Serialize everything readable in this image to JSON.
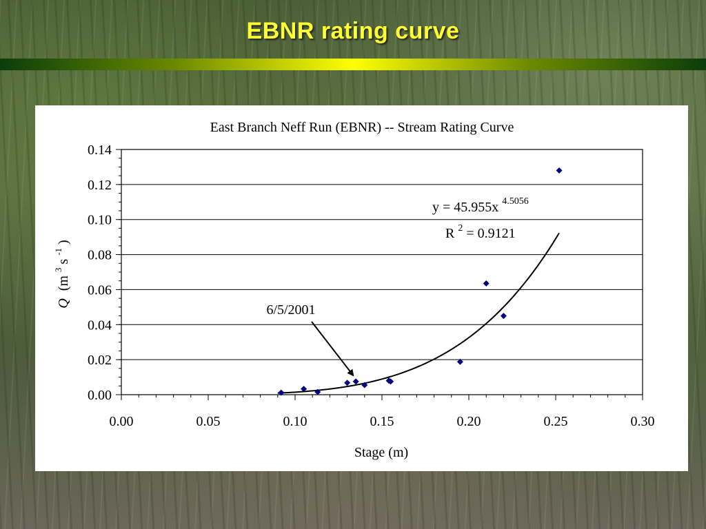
{
  "slide": {
    "title": "EBNR rating curve"
  },
  "chart_data": {
    "type": "scatter",
    "title": "East Branch Neff Run (EBNR) -- Stream Rating Curve",
    "xlabel": "Stage (m)",
    "ylabel": {
      "symbol": "Q",
      "unit_open": "(m",
      "unit_exp1": "3",
      "unit_s": " s",
      "unit_exp2": "-1",
      "unit_close": ")"
    },
    "xlim": [
      0,
      0.3
    ],
    "ylim": [
      0,
      0.14
    ],
    "x_ticks": [
      "0.00",
      "0.05",
      "0.10",
      "0.15",
      "0.20",
      "0.25",
      "0.30"
    ],
    "y_ticks": [
      "0.00",
      "0.02",
      "0.04",
      "0.06",
      "0.08",
      "0.10",
      "0.12",
      "0.14"
    ],
    "grid": "horizontal",
    "series": [
      {
        "marker": "diamond",
        "color": "#000080",
        "points": [
          {
            "x": 0.092,
            "y": 0.0012
          },
          {
            "x": 0.105,
            "y": 0.0033
          },
          {
            "x": 0.113,
            "y": 0.0015
          },
          {
            "x": 0.13,
            "y": 0.0068
          },
          {
            "x": 0.135,
            "y": 0.0075
          },
          {
            "x": 0.14,
            "y": 0.0055
          },
          {
            "x": 0.154,
            "y": 0.008
          },
          {
            "x": 0.155,
            "y": 0.0075
          },
          {
            "x": 0.195,
            "y": 0.0188
          },
          {
            "x": 0.21,
            "y": 0.0635
          },
          {
            "x": 0.22,
            "y": 0.045
          },
          {
            "x": 0.252,
            "y": 0.128
          }
        ]
      }
    ],
    "trendline": {
      "equation": {
        "base": "y = 45.955x",
        "exponent": "4.5056"
      },
      "r2": {
        "prefix": "R",
        "exp": "2",
        "value": " = 0.9121"
      },
      "coefficient": 45.955,
      "power": 4.5056,
      "x_range": [
        0.09,
        0.252
      ],
      "color": "#000000"
    },
    "annotation": {
      "text": "6/5/2001",
      "target": {
        "x": 0.135,
        "y": 0.0075
      }
    }
  }
}
